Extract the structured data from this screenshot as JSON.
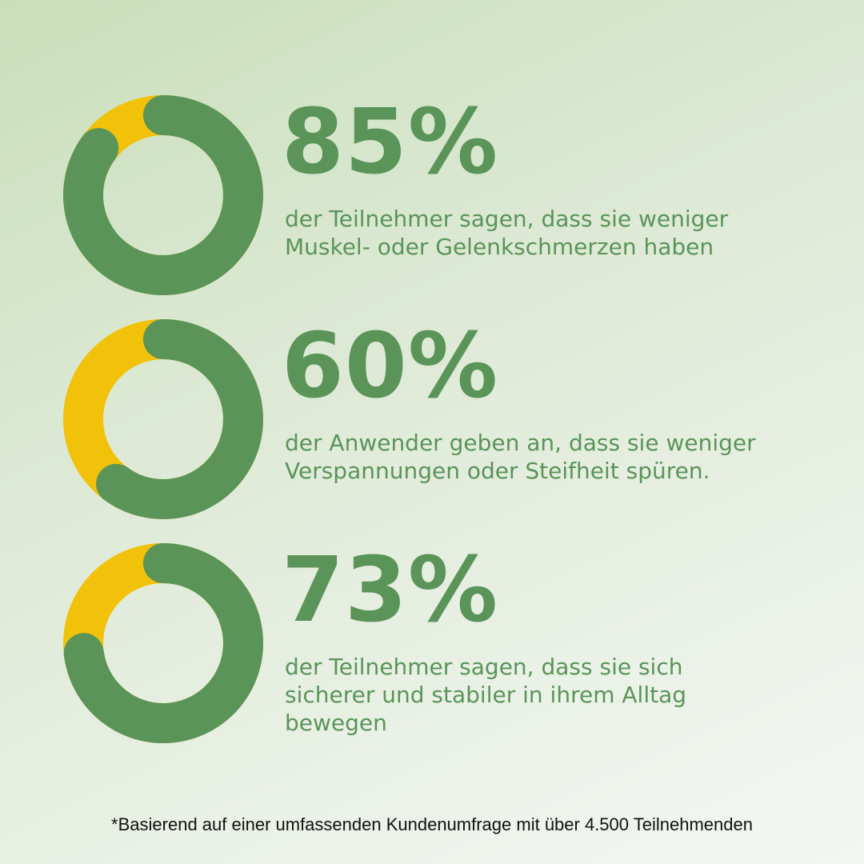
{
  "colors": {
    "green": "#5a9459",
    "yellow": "#f2c20a",
    "text": "#5a9459",
    "footnote": "#111111"
  },
  "stats": [
    {
      "value": "85%",
      "line1": "der Teilnehmer sagen, dass sie weniger",
      "line2": "Muskel- oder Gelenkschmerzen haben",
      "line3": ""
    },
    {
      "value": "60%",
      "line1": "der Anwender geben an, dass sie weniger",
      "line2": "Verspannungen oder Steifheit spüren.",
      "line3": ""
    },
    {
      "value": "73%",
      "line1": "der Teilnehmer sagen, dass sie sich",
      "line2": "sicherer und stabiler in ihrem Alltag",
      "line3": "bewegen"
    }
  ],
  "footnote": "*Basierend auf einer umfassenden Kundenumfrage mit über 4.500 Teilnehmenden",
  "chart_data": [
    {
      "type": "pie",
      "style": "donut",
      "categories": [
        "",
        ""
      ],
      "values": [
        85,
        15
      ]
    },
    {
      "type": "pie",
      "style": "donut",
      "categories": [
        "",
        ""
      ],
      "values": [
        60,
        40
      ]
    },
    {
      "type": "pie",
      "style": "donut",
      "categories": [
        "",
        ""
      ],
      "values": [
        73,
        27
      ]
    }
  ]
}
